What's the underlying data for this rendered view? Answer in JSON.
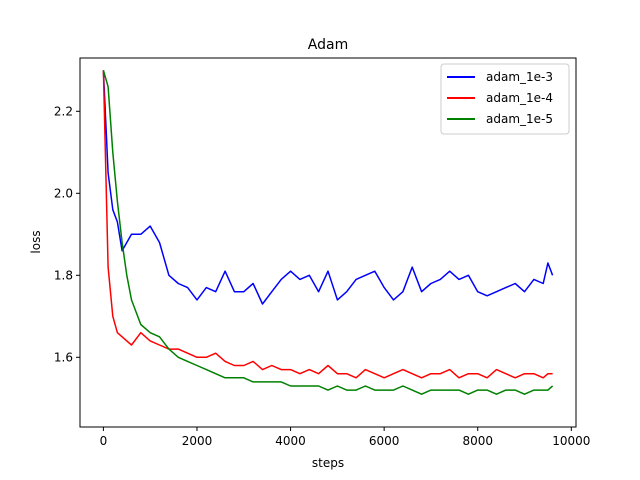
{
  "chart_data": {
    "type": "line",
    "title": "Adam",
    "xlabel": "steps",
    "ylabel": "loss",
    "xlim": [
      -500,
      10100
    ],
    "ylim": [
      1.43,
      2.33
    ],
    "xticks": [
      0,
      2000,
      4000,
      6000,
      8000,
      10000
    ],
    "yticks": [
      1.6,
      1.8,
      2.0,
      2.2
    ],
    "grid": false,
    "legend_position": "top-right",
    "series": [
      {
        "name": "adam_1e-3",
        "color": "#0000ff",
        "x": [
          0,
          100,
          200,
          300,
          400,
          500,
          600,
          800,
          1000,
          1200,
          1400,
          1600,
          1800,
          2000,
          2200,
          2400,
          2600,
          2800,
          3000,
          3200,
          3400,
          3600,
          3800,
          4000,
          4200,
          4400,
          4600,
          4800,
          5000,
          5200,
          5400,
          5600,
          5800,
          6000,
          6200,
          6400,
          6600,
          6800,
          7000,
          7200,
          7400,
          7600,
          7800,
          8000,
          8200,
          8400,
          8600,
          8800,
          9000,
          9200,
          9400,
          9500,
          9600
        ],
        "y": [
          2.3,
          2.05,
          1.96,
          1.93,
          1.86,
          1.88,
          1.9,
          1.9,
          1.92,
          1.88,
          1.8,
          1.78,
          1.77,
          1.74,
          1.77,
          1.76,
          1.81,
          1.76,
          1.76,
          1.78,
          1.73,
          1.76,
          1.79,
          1.81,
          1.79,
          1.8,
          1.76,
          1.81,
          1.74,
          1.76,
          1.79,
          1.8,
          1.81,
          1.77,
          1.74,
          1.76,
          1.82,
          1.76,
          1.78,
          1.79,
          1.81,
          1.79,
          1.8,
          1.76,
          1.75,
          1.76,
          1.77,
          1.78,
          1.76,
          1.79,
          1.78,
          1.83,
          1.8
        ]
      },
      {
        "name": "adam_1e-4",
        "color": "#ff0000",
        "x": [
          0,
          100,
          200,
          300,
          400,
          500,
          600,
          800,
          1000,
          1200,
          1400,
          1600,
          1800,
          2000,
          2200,
          2400,
          2600,
          2800,
          3000,
          3200,
          3400,
          3600,
          3800,
          4000,
          4200,
          4400,
          4600,
          4800,
          5000,
          5200,
          5400,
          5600,
          5800,
          6000,
          6200,
          6400,
          6600,
          6800,
          7000,
          7200,
          7400,
          7600,
          7800,
          8000,
          8200,
          8400,
          8600,
          8800,
          9000,
          9200,
          9400,
          9500,
          9600
        ],
        "y": [
          2.3,
          1.82,
          1.7,
          1.66,
          1.65,
          1.64,
          1.63,
          1.66,
          1.64,
          1.63,
          1.62,
          1.62,
          1.61,
          1.6,
          1.6,
          1.61,
          1.59,
          1.58,
          1.58,
          1.59,
          1.57,
          1.58,
          1.57,
          1.57,
          1.56,
          1.57,
          1.56,
          1.58,
          1.56,
          1.56,
          1.55,
          1.57,
          1.56,
          1.55,
          1.56,
          1.57,
          1.56,
          1.55,
          1.56,
          1.56,
          1.57,
          1.55,
          1.56,
          1.56,
          1.55,
          1.57,
          1.56,
          1.55,
          1.56,
          1.56,
          1.55,
          1.56,
          1.56
        ]
      },
      {
        "name": "adam_1e-5",
        "color": "#008000",
        "x": [
          0,
          100,
          200,
          300,
          400,
          500,
          600,
          800,
          1000,
          1200,
          1400,
          1600,
          1800,
          2000,
          2200,
          2400,
          2600,
          2800,
          3000,
          3200,
          3400,
          3600,
          3800,
          4000,
          4200,
          4400,
          4600,
          4800,
          5000,
          5200,
          5400,
          5600,
          5800,
          6000,
          6200,
          6400,
          6600,
          6800,
          7000,
          7200,
          7400,
          7600,
          7800,
          8000,
          8200,
          8400,
          8600,
          8800,
          9000,
          9200,
          9400,
          9500,
          9600
        ],
        "y": [
          2.3,
          2.26,
          2.1,
          1.98,
          1.88,
          1.8,
          1.74,
          1.68,
          1.66,
          1.65,
          1.62,
          1.6,
          1.59,
          1.58,
          1.57,
          1.56,
          1.55,
          1.55,
          1.55,
          1.54,
          1.54,
          1.54,
          1.54,
          1.53,
          1.53,
          1.53,
          1.53,
          1.52,
          1.53,
          1.52,
          1.52,
          1.53,
          1.52,
          1.52,
          1.52,
          1.53,
          1.52,
          1.51,
          1.52,
          1.52,
          1.52,
          1.52,
          1.51,
          1.52,
          1.52,
          1.51,
          1.52,
          1.52,
          1.51,
          1.52,
          1.52,
          1.52,
          1.53
        ]
      }
    ]
  }
}
